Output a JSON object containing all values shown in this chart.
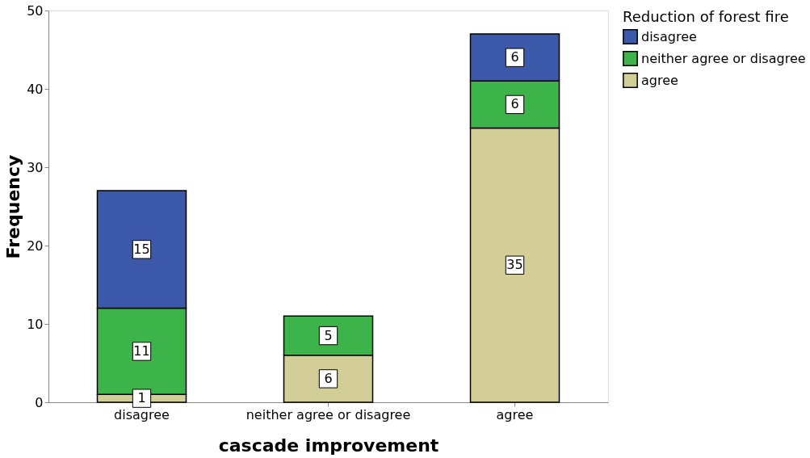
{
  "chart_data": {
    "type": "bar",
    "stacked": true,
    "xlabel": "cascade improvement",
    "ylabel": "Frequency",
    "legend_title": "Reduction of forest fire",
    "categories": [
      "disagree",
      "neither agree or disagree",
      "agree"
    ],
    "series": [
      {
        "name": "agree",
        "color": "#d3ce97",
        "values": [
          1,
          6,
          35
        ]
      },
      {
        "name": "neither agree or disagree",
        "color": "#3cb44a",
        "values": [
          11,
          5,
          6
        ]
      },
      {
        "name": "disagree",
        "color": "#3c58a8",
        "values": [
          15,
          null,
          6
        ]
      }
    ],
    "ylim": [
      0,
      50
    ],
    "yticks": [
      0,
      10,
      20,
      30,
      40,
      50
    ],
    "grid": false,
    "legend": "top right",
    "data_labels": true
  }
}
